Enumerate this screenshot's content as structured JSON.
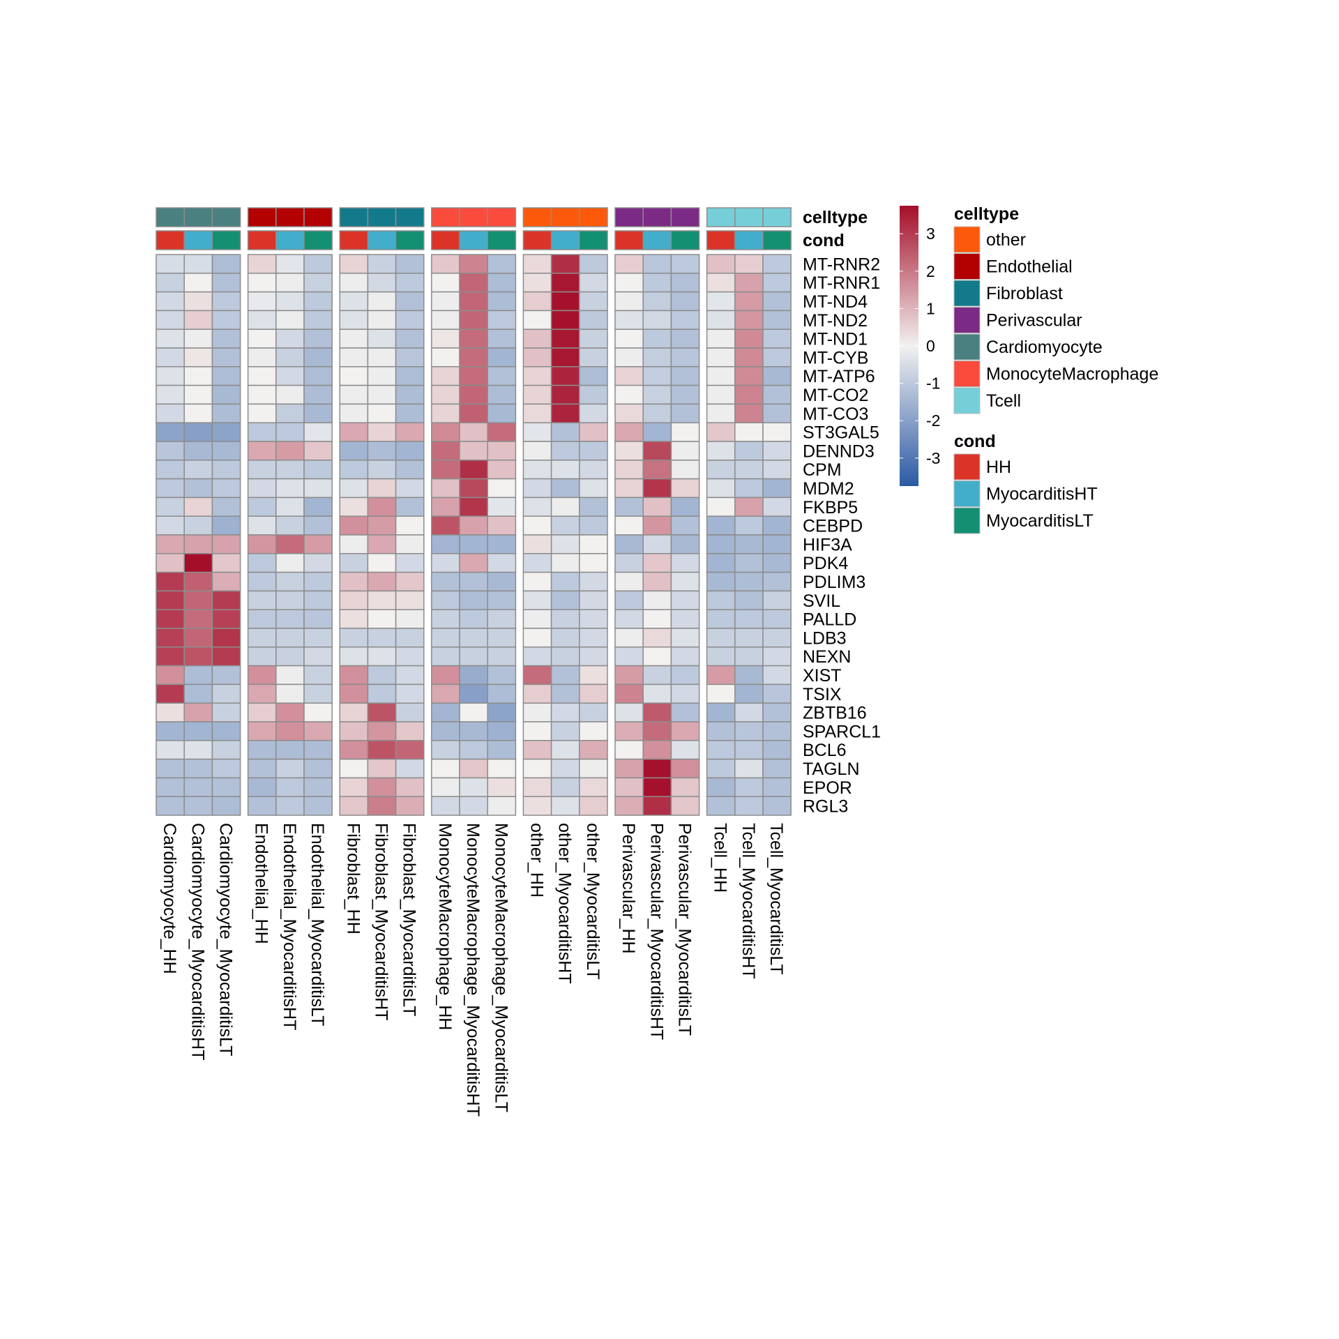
{
  "chart_data": {
    "type": "heatmap",
    "title": "",
    "columns": [
      "Cardiomyocyte_HH",
      "Cardiomyocyte_MyocarditisHT",
      "Cardiomyocyte_MyocarditisLT",
      "Endothelial_HH",
      "Endothelial_MyocarditisHT",
      "Endothelial_MyocarditisLT",
      "Fibroblast_HH",
      "Fibroblast_MyocarditisHT",
      "Fibroblast_MyocarditisLT",
      "MonocyteMacrophage_HH",
      "MonocyteMacrophage_MyocarditisHT",
      "MonocyteMacrophage_MyocarditisLT",
      "other_HH",
      "other_MyocarditisHT",
      "other_MyocarditisLT",
      "Perivascular_HH",
      "Perivascular_MyocarditisHT",
      "Perivascular_MyocarditisLT",
      "Tcell_HH",
      "Tcell_MyocarditisHT",
      "Tcell_MyocarditisLT"
    ],
    "column_celltype": [
      "Cardiomyocyte",
      "Cardiomyocyte",
      "Cardiomyocyte",
      "Endothelial",
      "Endothelial",
      "Endothelial",
      "Fibroblast",
      "Fibroblast",
      "Fibroblast",
      "MonocyteMacrophage",
      "MonocyteMacrophage",
      "MonocyteMacrophage",
      "other",
      "other",
      "other",
      "Perivascular",
      "Perivascular",
      "Perivascular",
      "Tcell",
      "Tcell",
      "Tcell"
    ],
    "column_cond": [
      "HH",
      "MyocarditisHT",
      "MyocarditisLT",
      "HH",
      "MyocarditisHT",
      "MyocarditisLT",
      "HH",
      "MyocarditisHT",
      "MyocarditisLT",
      "HH",
      "MyocarditisHT",
      "MyocarditisLT",
      "HH",
      "MyocarditisHT",
      "MyocarditisLT",
      "HH",
      "MyocarditisHT",
      "MyocarditisLT",
      "HH",
      "MyocarditisHT",
      "MyocarditisLT"
    ],
    "rows": [
      "MT-RNR2",
      "MT-RNR1",
      "MT-ND4",
      "MT-ND2",
      "MT-ND1",
      "MT-CYB",
      "MT-ATP6",
      "MT-CO2",
      "MT-CO3",
      "ST3GAL5",
      "DENND3",
      "CPM",
      "MDM2",
      "FKBP5",
      "CEBPD",
      "HIF3A",
      "PDK4",
      "PDLIM3",
      "SVIL",
      "PALLD",
      "LDB3",
      "NEXN",
      "XIST",
      "TSIX",
      "ZBTB16",
      "SPARCL1",
      "BCL6",
      "TAGLN",
      "EPOR",
      "RGL3"
    ],
    "values": [
      [
        -0.5,
        -0.5,
        -1.3,
        0.5,
        -0.3,
        -1,
        0.5,
        -0.8,
        -1.2,
        0.7,
        1.8,
        -1.2,
        0.4,
        3.2,
        -1,
        0.6,
        -1.1,
        -1,
        0.8,
        0.6,
        -1
      ],
      [
        -0.8,
        0,
        -1.2,
        0,
        -0.1,
        -0.8,
        -0.1,
        -0.6,
        -1,
        0,
        2.3,
        -1.3,
        0.3,
        3.6,
        -0.6,
        0,
        -1,
        -1.2,
        0.3,
        1.3,
        -1
      ],
      [
        -0.6,
        0.3,
        -1,
        -0.2,
        -0.4,
        -1,
        -0.4,
        -0.1,
        -1.2,
        -0.1,
        2.3,
        -1.3,
        0.6,
        3.7,
        -0.8,
        -0.1,
        -0.9,
        -1.2,
        -0.3,
        1.4,
        -1.2
      ],
      [
        -0.6,
        0.6,
        -1,
        -0.4,
        -0.1,
        -1,
        -0.4,
        -0.1,
        -1,
        -0.1,
        2.3,
        -1,
        0,
        3.7,
        -1,
        -0.4,
        -0.6,
        -1,
        -0.4,
        1.5,
        -1.2
      ],
      [
        -0.4,
        -0.1,
        -1.2,
        0,
        -0.6,
        -1.2,
        -0.1,
        -0.4,
        -1.2,
        0.2,
        2.2,
        -1.2,
        0.8,
        3.6,
        -0.8,
        0,
        -1,
        -1.2,
        -0.1,
        1.7,
        -1
      ],
      [
        -0.6,
        0.2,
        -1.2,
        -0.1,
        -0.8,
        -1.4,
        -0.1,
        -0.1,
        -1.1,
        0,
        2.2,
        -1.5,
        0.8,
        3.6,
        -0.8,
        -0.1,
        -0.9,
        -1.1,
        -0.1,
        1.7,
        -1
      ],
      [
        -0.4,
        0,
        -1.3,
        0,
        -0.6,
        -1.3,
        0,
        -0.1,
        -1.3,
        0.5,
        2.2,
        -1.2,
        0.5,
        3.4,
        -1.3,
        0.5,
        -0.9,
        -1.2,
        -0.1,
        1.7,
        -1.4
      ],
      [
        -0.4,
        0,
        -1.4,
        0,
        -0.1,
        -1.3,
        -0.1,
        -0.1,
        -1.3,
        0.5,
        2.3,
        -1.3,
        0.5,
        3.4,
        -1,
        0,
        -0.8,
        -1.2,
        -0.1,
        1.8,
        -1.2
      ],
      [
        -0.6,
        0,
        -1.3,
        0,
        -0.9,
        -1.4,
        -0.1,
        0,
        -1.3,
        0.5,
        2.4,
        -1.4,
        0.4,
        3.4,
        -0.6,
        0.4,
        -0.9,
        -1.2,
        -0.1,
        1.8,
        -1.2
      ],
      [
        -1.9,
        -2,
        -1.9,
        -1,
        -1,
        -0.3,
        1.2,
        0.5,
        1.2,
        1.7,
        0.8,
        2.2,
        -0.3,
        -1.2,
        0.8,
        1.2,
        -1.5,
        0,
        0.7,
        0,
        0
      ],
      [
        -1.1,
        -1.4,
        -1.4,
        1.2,
        1.4,
        0.7,
        -1.5,
        -1.3,
        -1.5,
        2.2,
        0.8,
        0.8,
        -0.1,
        -1,
        -1,
        0.3,
        2.8,
        -0.1,
        -0.4,
        -1,
        -0.6
      ],
      [
        -1,
        -0.8,
        -1,
        -0.8,
        -0.8,
        -1,
        -1,
        -0.8,
        -1.2,
        2.2,
        3.2,
        0.8,
        -0.4,
        -0.4,
        -0.6,
        0.5,
        2.1,
        -0.1,
        -0.8,
        -0.8,
        -0.6
      ],
      [
        -1,
        -1.2,
        -1,
        -0.6,
        -0.4,
        -0.4,
        -0.4,
        0.5,
        -0.6,
        0.8,
        2.8,
        0,
        -0.6,
        -1.3,
        -0.4,
        0.5,
        3.1,
        0.5,
        -0.4,
        -1,
        -1.5
      ],
      [
        -0.8,
        0.5,
        -1.2,
        -1,
        -0.4,
        -1.5,
        0.3,
        1.6,
        -1.2,
        1.3,
        3.1,
        -0.3,
        -0.4,
        -0.1,
        -1.2,
        -1.2,
        0.8,
        -1.5,
        0,
        1.3,
        -0.6
      ],
      [
        -0.6,
        -0.8,
        -1.6,
        -0.4,
        -0.8,
        -1.2,
        1.6,
        1.4,
        0,
        2.6,
        1.3,
        0.8,
        0,
        -0.8,
        -1,
        0,
        1.5,
        -1.2,
        -1.5,
        -1,
        -1.5
      ],
      [
        1.2,
        1.3,
        1.3,
        1.5,
        2.2,
        1.4,
        -0.1,
        1.2,
        -0.1,
        -1.5,
        -1.5,
        -1.5,
        0.3,
        -0.4,
        0,
        -1.4,
        -0.6,
        -1.4,
        -1.5,
        -1.4,
        -1.5
      ],
      [
        0.8,
        3.8,
        0.7,
        -1,
        -0.1,
        -0.6,
        -0.8,
        0,
        -0.6,
        -0.6,
        1.2,
        -0.6,
        -0.6,
        -0.1,
        0,
        -0.8,
        0.7,
        -0.6,
        -1.5,
        -1.2,
        -1.4
      ],
      [
        3,
        2.4,
        1.1,
        -1,
        -0.8,
        -1,
        0.8,
        1.2,
        0.7,
        -1.2,
        -1.2,
        -1.4,
        0,
        -1,
        -0.6,
        -0.1,
        0.8,
        -0.4,
        -1.4,
        -1.3,
        -1.2
      ],
      [
        3,
        2.3,
        3,
        -0.8,
        -0.8,
        -1,
        0.5,
        0.3,
        0.3,
        -1,
        -1.3,
        -1.2,
        -0.4,
        -1.2,
        -0.6,
        -1,
        -0.1,
        -0.6,
        -1,
        -1.2,
        -0.8
      ],
      [
        3,
        2.2,
        2.9,
        -1,
        -1,
        -1.1,
        0.3,
        0,
        -0.1,
        -0.8,
        -1,
        -0.8,
        -0.1,
        -0.8,
        -0.6,
        -0.6,
        0,
        -0.6,
        -1,
        -1,
        -1
      ],
      [
        2.9,
        2.3,
        3.1,
        -0.8,
        -0.8,
        -0.8,
        -0.8,
        -0.8,
        -0.8,
        -0.8,
        -0.8,
        -0.8,
        0,
        -0.8,
        -0.6,
        -0.1,
        0.4,
        -0.4,
        -0.8,
        -0.8,
        -0.8
      ],
      [
        2.9,
        2.6,
        3,
        -0.8,
        -0.8,
        -0.6,
        -0.4,
        -0.4,
        -0.6,
        -0.8,
        -0.8,
        -0.8,
        -0.6,
        -0.8,
        -0.6,
        -0.6,
        0,
        -0.6,
        -0.8,
        -0.8,
        -0.6
      ],
      [
        1.6,
        -1.3,
        -1.2,
        1.6,
        -0.1,
        -0.8,
        1.6,
        -1,
        -0.6,
        1.6,
        -1.7,
        -1.2,
        2.2,
        -1.2,
        0.3,
        1.4,
        -0.8,
        -1,
        1.4,
        -1.4,
        -0.6
      ],
      [
        3,
        -1.3,
        -0.8,
        1.2,
        -0.1,
        -0.8,
        1.6,
        -1,
        -0.6,
        1.2,
        -2,
        -1.3,
        0.6,
        -1.2,
        0.6,
        1.8,
        -0.4,
        -0.6,
        0,
        -1.5,
        -1.1
      ],
      [
        0.3,
        1.3,
        -0.8,
        0.6,
        1.6,
        0,
        0.5,
        2.6,
        -0.8,
        -1.5,
        0,
        -1.9,
        -0.1,
        -0.6,
        -0.8,
        -0.4,
        2.5,
        -1.2,
        -1.5,
        -0.6,
        -1.2
      ],
      [
        -1.5,
        -1.5,
        -1.5,
        1.2,
        1.6,
        1.2,
        0.8,
        1.5,
        0.7,
        -1.4,
        -1.4,
        -1.6,
        0,
        -0.8,
        0,
        1.1,
        2.2,
        1.2,
        -1.2,
        -1.1,
        -1.2
      ],
      [
        -0.4,
        -0.4,
        -0.8,
        -1.3,
        -1.3,
        -1.3,
        1.6,
        2.6,
        2.3,
        -0.8,
        -1,
        -1.3,
        0.8,
        -0.4,
        1.1,
        0,
        1.6,
        -0.4,
        -1,
        -1,
        -1.3
      ],
      [
        -1.2,
        -1.2,
        -1,
        -1.2,
        -0.8,
        -1.2,
        0,
        0.7,
        -0.6,
        0,
        0.7,
        0,
        0,
        -0.6,
        -0.1,
        1.3,
        3.7,
        1.6,
        -1,
        -0.4,
        -1.2
      ],
      [
        -1.2,
        -1.2,
        -1.2,
        -1.4,
        -1,
        -1.2,
        0.5,
        1.6,
        0.8,
        -0.1,
        -0.4,
        0.3,
        0.4,
        -0.8,
        0.4,
        0.8,
        3.7,
        0.7,
        -1.4,
        -1,
        -1.2
      ],
      [
        -1.2,
        -1.2,
        -1.3,
        -1.2,
        -1,
        -1.2,
        0.7,
        1.9,
        1.1,
        -0.6,
        -0.6,
        -0.1,
        0.3,
        -0.4,
        0.6,
        1.1,
        3.2,
        0.7,
        -1.2,
        -1,
        -1.2
      ]
    ],
    "color_scale": {
      "min": -3.75,
      "max": 3.75,
      "low": "#2b5aa4",
      "mid": "#f2f1f0",
      "high": "#a40e29",
      "ticks": [
        3,
        2,
        1,
        0,
        -1,
        -2,
        -3
      ]
    },
    "annotation_labels": {
      "celltype": "celltype",
      "cond": "cond"
    },
    "legend": {
      "celltype_title": "celltype",
      "celltype": [
        {
          "label": "other",
          "color": "#fc5a0a"
        },
        {
          "label": "Endothelial",
          "color": "#b30000"
        },
        {
          "label": "Fibroblast",
          "color": "#127a8b"
        },
        {
          "label": "Perivascular",
          "color": "#7b2a85"
        },
        {
          "label": "Cardiomyocyte",
          "color": "#4a8080"
        },
        {
          "label": "MonocyteMacrophage",
          "color": "#fa4b3c"
        },
        {
          "label": "Tcell",
          "color": "#76cfd8"
        }
      ],
      "cond_title": "cond",
      "cond": [
        {
          "label": "HH",
          "color": "#dc3328"
        },
        {
          "label": "MyocarditisHT",
          "color": "#42aecb"
        },
        {
          "label": "MyocarditisLT",
          "color": "#138f72"
        }
      ]
    }
  }
}
